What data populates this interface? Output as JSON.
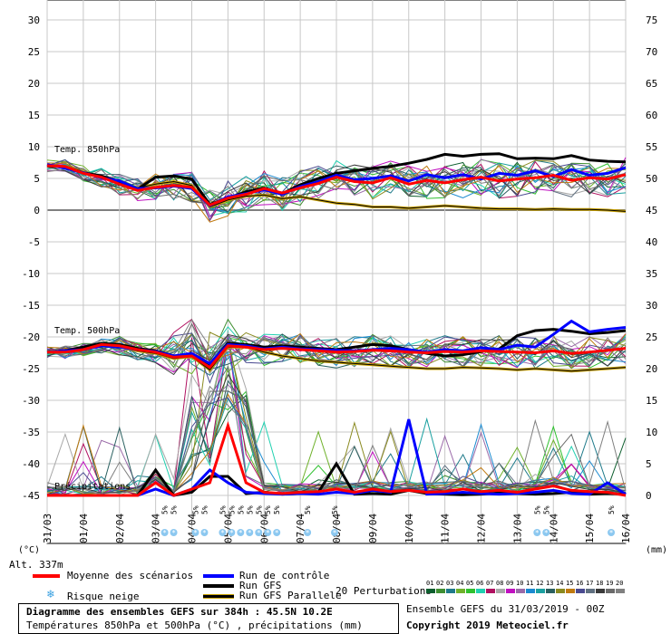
{
  "chart_data": {
    "type": "line",
    "title": "Diagramme des ensembles GEFS sur 384h : 45.5N 10.2E",
    "subtitle": "Températures 850hPa et 500hPa (°C) , précipitations (mm)",
    "run_label": "Ensemble GEFS du 31/03/2019 - 00Z",
    "copyright": "Copyright 2019 Meteociel.fr",
    "altitude": "Alt. 337m",
    "left_unit": "(°C)",
    "right_unit": "(mm)",
    "left_ticks": [
      "30",
      "25",
      "20",
      "15",
      "10",
      "5",
      "0",
      "-5",
      "-10",
      "-15",
      "-20",
      "-25",
      "-30",
      "-35",
      "-40",
      "-45"
    ],
    "right_ticks": [
      "75",
      "70",
      "65",
      "60",
      "55",
      "50",
      "45",
      "40",
      "35",
      "30",
      "25",
      "20",
      "15",
      "10",
      "5",
      "0"
    ],
    "x_ticks": [
      "31/03",
      "01/04",
      "02/04",
      "03/04",
      "04/04",
      "05/04",
      "06/04",
      "07/04",
      "08/04",
      "09/04",
      "10/04",
      "11/04",
      "12/04",
      "13/04",
      "14/04",
      "15/04",
      "16/04"
    ],
    "ylim_temp": [
      -45,
      30
    ],
    "ylim_precip_mm": [
      0,
      75
    ],
    "panel_labels": {
      "t850": "Temp. 850hPa",
      "t500": "Temp. 500hPa",
      "precip": "Précipitations"
    },
    "snow_markers": {
      "label": "5%",
      "days": [
        3.25,
        3.5,
        4.1,
        4.35,
        4.85,
        5.1,
        5.35,
        5.6,
        5.85,
        6.1,
        6.35,
        7.2,
        7.95,
        13.55,
        13.8,
        15.6
      ]
    },
    "perturbation_colors": [
      "#0d5e2e",
      "#3f8f32",
      "#1f7a8a",
      "#6fb12b",
      "#2fc02f",
      "#20d0b0",
      "#b01060",
      "#a8a8a8",
      "#c010c0",
      "#9a6aa8",
      "#1a8ad0",
      "#1aa0a0",
      "#2a6060",
      "#8a8a20",
      "#c07a10",
      "#4a4a90",
      "#607080",
      "#3a3a3a",
      "#6a6a6a",
      "#808080"
    ],
    "perturbation_numbers": [
      "01",
      "02",
      "03",
      "04",
      "05",
      "06",
      "07",
      "08",
      "09",
      "10",
      "11",
      "12",
      "13",
      "14",
      "15",
      "16",
      "17",
      "18",
      "19",
      "20"
    ],
    "series": [
      {
        "name": "Moyenne des scénarios",
        "color": "#ff0000",
        "t850": [
          7,
          6.9,
          5.8,
          5.2,
          4.1,
          3.1,
          3.6,
          3.9,
          3.6,
          0.8,
          1.9,
          2.5,
          3.4,
          2.7,
          3.5,
          4.2,
          5.2,
          4.5,
          4.3,
          5.1,
          4.1,
          4.7,
          4.3,
          4.8,
          5.2,
          4.6,
          4.9,
          5.1,
          5.5,
          4.7,
          5.1,
          4.9,
          5.6
        ],
        "t500": [
          -22.4,
          -22.4,
          -22.0,
          -21.2,
          -21.4,
          -22.0,
          -22.4,
          -23.2,
          -23.0,
          -24.8,
          -21.4,
          -21.6,
          -22.0,
          -21.8,
          -22.0,
          -22.2,
          -22.4,
          -22.3,
          -22.1,
          -22.2,
          -22.4,
          -22.5,
          -22.3,
          -22.4,
          -22.2,
          -22.3,
          -22.4,
          -22.5,
          -22.2,
          -22.6,
          -22.4,
          -22.1,
          -21.8
        ],
        "precip": [
          0,
          0,
          0,
          0,
          0,
          0,
          2,
          0,
          1,
          2,
          11,
          2,
          0.5,
          0.3,
          0.5,
          0.6,
          1,
          0.5,
          1,
          0.6,
          0.8,
          0.5,
          0.6,
          1,
          0.6,
          0.8,
          0.5,
          1,
          1.5,
          0.8,
          0.6,
          0.5,
          0
        ]
      },
      {
        "name": "Run de contrôle",
        "color": "#0000ff",
        "t850": [
          7.2,
          6.6,
          5.9,
          5.1,
          4.6,
          3.4,
          3.5,
          3.8,
          3.4,
          0.7,
          2.1,
          2.6,
          3.2,
          2.5,
          3.7,
          4.5,
          5.5,
          4.8,
          5.0,
          5.4,
          4.6,
          5.6,
          5.1,
          5.6,
          4.9,
          5.8,
          5.5,
          6.2,
          5.3,
          6.4,
          5.5,
          5.8,
          6.7
        ],
        "t500": [
          -22.4,
          -22.2,
          -22.0,
          -21.4,
          -21.6,
          -22.0,
          -22.3,
          -23.0,
          -22.6,
          -24.2,
          -21.2,
          -21.4,
          -21.9,
          -21.6,
          -21.9,
          -22.0,
          -22.1,
          -22.2,
          -22.0,
          -21.8,
          -22.0,
          -22.4,
          -22.0,
          -22.2,
          -21.7,
          -22.0,
          -21.3,
          -21.6,
          -19.6,
          -17.5,
          -19.2,
          -18.8,
          -18.5
        ],
        "precip": [
          0,
          0,
          0,
          0,
          0,
          0,
          1,
          0,
          1,
          4,
          2,
          0.5,
          0.3,
          0.2,
          0.3,
          0.2,
          0.5,
          0.3,
          0.8,
          0.5,
          12,
          0.2,
          0.3,
          0.5,
          0.3,
          0.2,
          0.3,
          0.5,
          0.8,
          0.3,
          0.2,
          2,
          0.2
        ]
      },
      {
        "name": "Run GFS",
        "color": "#000000",
        "t850": [
          7,
          6.8,
          5.9,
          5.4,
          4.5,
          3.3,
          5.2,
          5.4,
          4.9,
          0.9,
          1.9,
          2.9,
          3.5,
          2.6,
          4.0,
          5.0,
          5.8,
          6.2,
          6.6,
          6.9,
          7.4,
          8.0,
          8.8,
          8.5,
          8.8,
          8.9,
          8.1,
          8.2,
          8.1,
          8.6,
          7.9,
          7.7,
          7.6
        ],
        "t500": [
          -22.4,
          -22.2,
          -21.6,
          -21.0,
          -21.2,
          -21.8,
          -22.2,
          -23.0,
          -22.8,
          -24.3,
          -21.0,
          -21.2,
          -21.6,
          -21.4,
          -21.6,
          -21.8,
          -22.0,
          -21.6,
          -21.2,
          -21.4,
          -22.0,
          -22.6,
          -23.0,
          -22.8,
          -22.3,
          -21.9,
          -19.8,
          -19.0,
          -18.8,
          -19.1,
          -19.5,
          -19.3,
          -19.0
        ],
        "precip": [
          0,
          0,
          0,
          0,
          0,
          0,
          4,
          0,
          0.5,
          3,
          3,
          0.3,
          0.5,
          0.2,
          0.3,
          0.5,
          5,
          0.2,
          0.3,
          0.2,
          0.8,
          0.3,
          0.2,
          0.1,
          0.2,
          0.4,
          0.3,
          0.2,
          0.3,
          0.5,
          0.2,
          0.3,
          0.2
        ]
      },
      {
        "name": "Run GFS Parallele",
        "color": "#000000",
        "t850": [
          7,
          6.9,
          6.0,
          5.2,
          4.3,
          3.5,
          4.1,
          4.5,
          3.9,
          0.5,
          1.6,
          2.2,
          2.4,
          1.8,
          2.1,
          1.6,
          1.1,
          0.9,
          0.5,
          0.5,
          0.3,
          0.5,
          0.7,
          0.5,
          0.3,
          0.2,
          0.2,
          0.1,
          0.2,
          0.1,
          0.1,
          0.0,
          -0.2
        ],
        "t500": [
          -22.4,
          -22.4,
          -21.8,
          -21.2,
          -21.6,
          -22.2,
          -22.6,
          -23.4,
          -23.1,
          -25.2,
          -21.6,
          -21.6,
          -22.4,
          -23.0,
          -23.4,
          -23.8,
          -24.0,
          -24.2,
          -24.4,
          -24.6,
          -24.8,
          -25.0,
          -25.0,
          -24.8,
          -24.9,
          -25.0,
          -25.2,
          -25.0,
          -25.2,
          -25.4,
          -25.2,
          -25.0,
          -24.8
        ]
      }
    ]
  },
  "legend": {
    "mean": "Moyenne des scénarios",
    "control": "Run de contrôle",
    "gfs": "Run GFS",
    "gfs_parallel": "Run GFS Parallele",
    "snow_risk": "Risque neige",
    "perturbations": "20 Perturbations"
  },
  "colors": {
    "grid": "#c8c8c8",
    "snow": "#8cc8f0",
    "zero_line": "#808080"
  }
}
